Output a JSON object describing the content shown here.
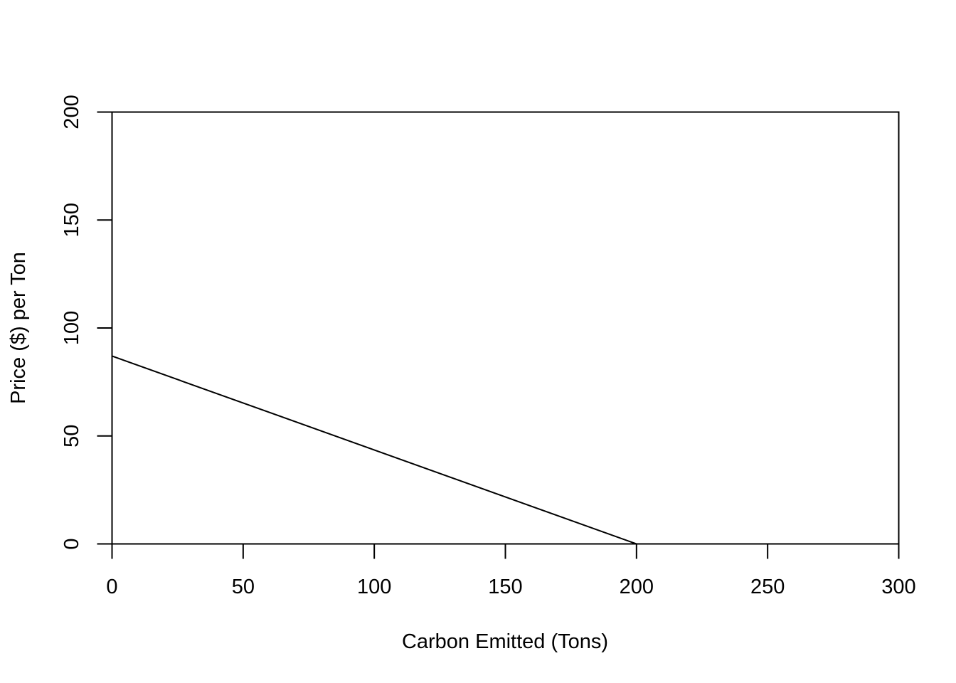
{
  "chart_data": {
    "type": "line",
    "title": "",
    "xlabel": "Carbon Emitted (Tons)",
    "ylabel": "Price ($) per Ton",
    "xlim": [
      0,
      300
    ],
    "ylim": [
      0,
      200
    ],
    "x_ticks": [
      0,
      50,
      100,
      150,
      200,
      250,
      300
    ],
    "y_ticks": [
      0,
      50,
      100,
      150,
      200
    ],
    "grid": false,
    "legend": "none",
    "series": [
      {
        "color": "#000000",
        "points": [
          {
            "x": 0,
            "y": 87
          },
          {
            "x": 200,
            "y": 0
          },
          {
            "x": 300,
            "y": 0
          }
        ]
      }
    ]
  }
}
